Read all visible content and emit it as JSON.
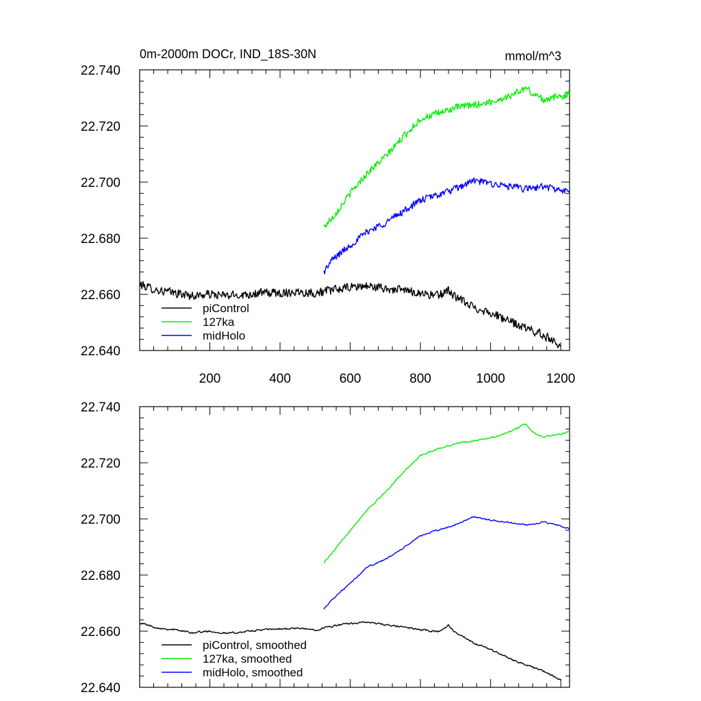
{
  "colors": {
    "piControl": "#000000",
    "127ka": "#00ee00",
    "midHolo": "#0000ff",
    "axis": "#000000",
    "background": "#ffffff"
  },
  "chart_data": [
    {
      "type": "line",
      "title": "0m-2000m DOCr, IND_18S-30N",
      "units": "mmol/m^3",
      "xlim": [
        0,
        1225
      ],
      "ylim": [
        22.64,
        22.74
      ],
      "xticks": [
        200,
        400,
        600,
        800,
        1000,
        1200
      ],
      "xtick_labels": [
        "200",
        "400",
        "600",
        "800",
        "1000",
        "1200"
      ],
      "yticks": [
        22.64,
        22.66,
        22.68,
        22.7,
        22.72,
        22.74
      ],
      "ytick_labels": [
        "22.640",
        "22.660",
        "22.680",
        "22.700",
        "22.720",
        "22.740"
      ],
      "legend_position": "lower-left",
      "series": [
        {
          "name": "piControl",
          "color_key": "piControl",
          "x": [
            0,
            50,
            100,
            150,
            200,
            250,
            300,
            350,
            400,
            450,
            500,
            550,
            600,
            650,
            700,
            750,
            800,
            850,
            880,
            900,
            950,
            1000,
            1050,
            1100,
            1150,
            1200
          ],
          "y": [
            22.6635,
            22.6615,
            22.6605,
            22.6595,
            22.66,
            22.6595,
            22.66,
            22.6605,
            22.6605,
            22.661,
            22.6605,
            22.6615,
            22.6625,
            22.663,
            22.662,
            22.6615,
            22.6605,
            22.6595,
            22.6615,
            22.659,
            22.6555,
            22.6535,
            22.6505,
            22.648,
            22.6455,
            22.642
          ],
          "noise": 0.0015
        },
        {
          "name": "127ka",
          "color_key": "127ka",
          "x": [
            525,
            550,
            600,
            650,
            700,
            750,
            800,
            850,
            900,
            950,
            1000,
            1050,
            1100,
            1120,
            1150,
            1200,
            1225
          ],
          "y": [
            22.684,
            22.6875,
            22.696,
            22.7035,
            22.709,
            22.716,
            22.7225,
            22.7245,
            22.7265,
            22.7275,
            22.7285,
            22.7305,
            22.7335,
            22.7315,
            22.7295,
            22.7305,
            22.7315
          ],
          "noise": 0.0012
        },
        {
          "name": "midHolo",
          "color_key": "midHolo",
          "x": [
            525,
            550,
            600,
            650,
            700,
            750,
            800,
            850,
            900,
            950,
            1000,
            1050,
            1100,
            1150,
            1200,
            1225
          ],
          "y": [
            22.668,
            22.6725,
            22.6775,
            22.6825,
            22.6855,
            22.6895,
            22.6935,
            22.6955,
            22.6975,
            22.7005,
            22.6995,
            22.6985,
            22.6975,
            22.6985,
            22.697,
            22.6965
          ],
          "noise": 0.0012
        }
      ]
    },
    {
      "type": "line",
      "title": "",
      "units": "",
      "xlim": [
        0,
        1225
      ],
      "ylim": [
        22.64,
        22.74
      ],
      "xticks": [
        200,
        400,
        600,
        800,
        1000,
        1200
      ],
      "xtick_labels": [],
      "yticks": [
        22.64,
        22.66,
        22.68,
        22.7,
        22.72,
        22.74
      ],
      "ytick_labels": [
        "22.640",
        "22.660",
        "22.680",
        "22.700",
        "22.720",
        "22.740"
      ],
      "legend_position": "lower-left",
      "series": [
        {
          "name": "piControl, smoothed",
          "color_key": "piControl",
          "x": [
            0,
            50,
            100,
            150,
            200,
            250,
            300,
            350,
            400,
            450,
            500,
            550,
            600,
            650,
            700,
            750,
            800,
            850,
            880,
            900,
            950,
            1000,
            1050,
            1100,
            1150,
            1200
          ],
          "y": [
            22.663,
            22.6612,
            22.6605,
            22.6595,
            22.66,
            22.6592,
            22.6598,
            22.6605,
            22.6608,
            22.661,
            22.6605,
            22.6618,
            22.6628,
            22.6632,
            22.6622,
            22.6615,
            22.6605,
            22.6598,
            22.662,
            22.6595,
            22.6558,
            22.6535,
            22.6505,
            22.648,
            22.6458,
            22.6425
          ],
          "noise": 0.0005
        },
        {
          "name": "127ka, smoothed",
          "color_key": "127ka",
          "x": [
            525,
            550,
            600,
            650,
            700,
            750,
            800,
            850,
            900,
            950,
            1000,
            1050,
            1100,
            1120,
            1150,
            1200,
            1225
          ],
          "y": [
            22.6845,
            22.688,
            22.696,
            22.7035,
            22.7095,
            22.7165,
            22.7225,
            22.725,
            22.7268,
            22.7278,
            22.7288,
            22.7308,
            22.7338,
            22.731,
            22.7292,
            22.7302,
            22.7312
          ],
          "noise": 0.0004
        },
        {
          "name": "midHolo, smoothed",
          "color_key": "midHolo",
          "x": [
            525,
            550,
            600,
            650,
            700,
            750,
            800,
            850,
            900,
            950,
            1000,
            1050,
            1100,
            1150,
            1200,
            1225
          ],
          "y": [
            22.668,
            22.6715,
            22.677,
            22.683,
            22.6855,
            22.6895,
            22.694,
            22.696,
            22.6978,
            22.7008,
            22.6995,
            22.6988,
            22.6978,
            22.6988,
            22.6975,
            22.6965
          ],
          "noise": 0.0004
        }
      ]
    }
  ]
}
